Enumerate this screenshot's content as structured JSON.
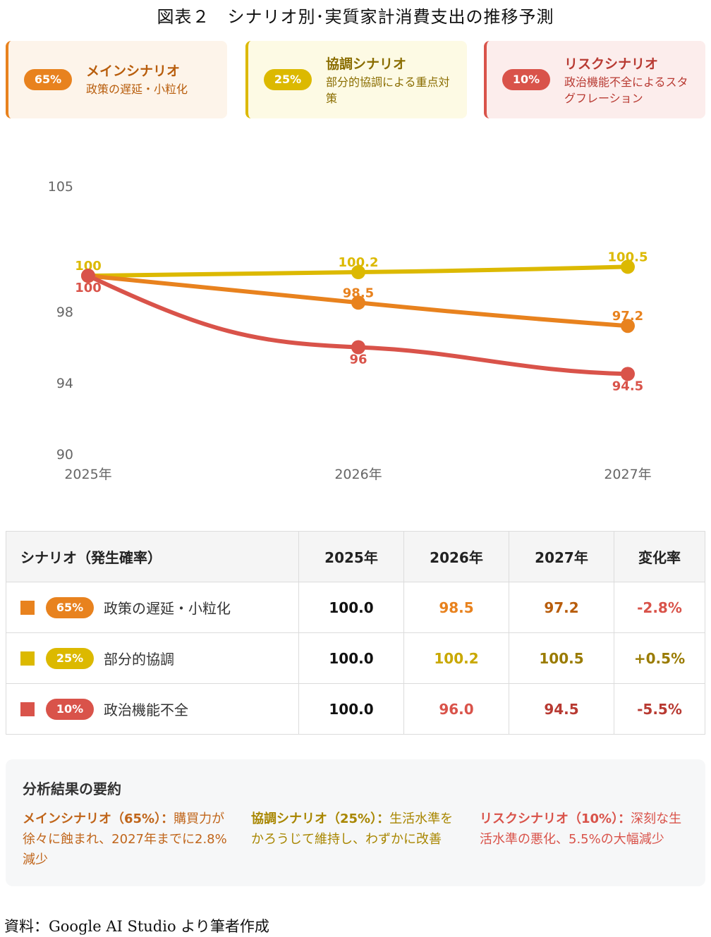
{
  "title": "図表２　シナリオ別･実質家計消費支出の推移予測",
  "colors": {
    "main": "#e8821e",
    "coop": "#dcb900",
    "risk": "#d9534a",
    "coop_text": "#9a7b00"
  },
  "cards": [
    {
      "pct": "65%",
      "name": "メインシナリオ",
      "desc": "政策の遅延・小粒化"
    },
    {
      "pct": "25%",
      "name": "協調シナリオ",
      "desc": "部分的協調による重点対策"
    },
    {
      "pct": "10%",
      "name": "リスクシナリオ",
      "desc": "政治機能不全によるスタグフレーション"
    }
  ],
  "chart_data": {
    "type": "line",
    "categories": [
      "2025年",
      "2026年",
      "2027年"
    ],
    "yticks": [
      "105",
      "98",
      "94",
      "90"
    ],
    "ylim": [
      90,
      105
    ],
    "series": [
      {
        "name": "協調シナリオ",
        "values": [
          100,
          100.2,
          100.5
        ],
        "labels": [
          "100",
          "100.2",
          "100.5"
        ]
      },
      {
        "name": "メインシナリオ",
        "values": [
          100,
          98.5,
          97.2
        ],
        "labels": [
          "",
          "98.5",
          "97.2"
        ]
      },
      {
        "name": "リスクシナリオ",
        "values": [
          100,
          96,
          94.5
        ],
        "labels": [
          "100",
          "96",
          "94.5"
        ]
      }
    ]
  },
  "table": {
    "headers": [
      "シナリオ（発生確率）",
      "2025年",
      "2026年",
      "2027年",
      "変化率"
    ],
    "rows": [
      {
        "pct": "65%",
        "label": "政策の遅延・小粒化",
        "v2025": "100.0",
        "v2026": "98.5",
        "v2027": "97.2",
        "change": "-2.8%"
      },
      {
        "pct": "25%",
        "label": "部分的協調",
        "v2025": "100.0",
        "v2026": "100.2",
        "v2027": "100.5",
        "change": "+0.5%"
      },
      {
        "pct": "10%",
        "label": "政治機能不全",
        "v2025": "100.0",
        "v2026": "96.0",
        "v2027": "94.5",
        "change": "-5.5%"
      }
    ]
  },
  "summary": {
    "heading": "分析結果の要約",
    "items": [
      {
        "label": "メインシナリオ（65%）：",
        "text": "購買力が徐々に蝕まれ、2027年までに2.8%減少"
      },
      {
        "label": "協調シナリオ（25%）：",
        "text": "生活水準をかろうじて維持し、わずかに改善"
      },
      {
        "label": "リスクシナリオ（10%）：",
        "text": "深刻な生活水準の悪化、5.5%の大幅減少"
      }
    ]
  },
  "source": "資料：Google AI Studio より筆者作成"
}
